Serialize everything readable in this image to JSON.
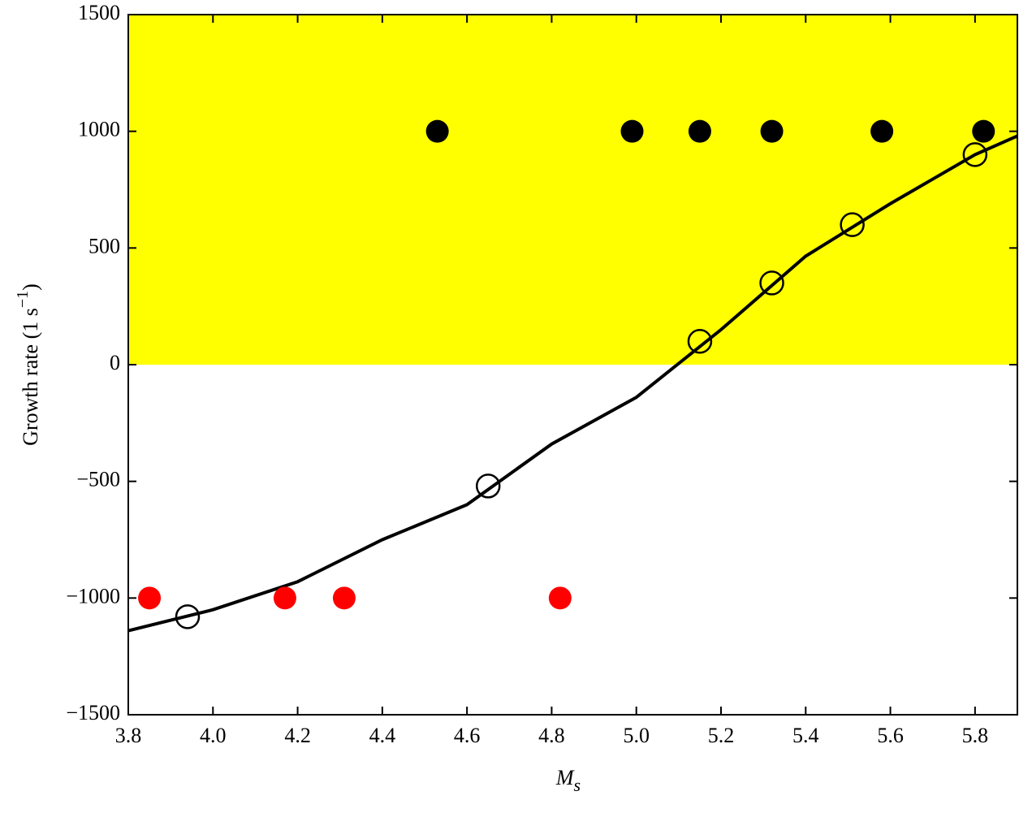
{
  "chart_data": {
    "type": "scatter",
    "xlabel": {
      "main": "M",
      "sub": "s"
    },
    "ylabel": {
      "main": "Growth rate (1 s",
      "sup": "−1",
      "end": ")"
    },
    "xlim": [
      3.8,
      5.9
    ],
    "ylim": [
      -1500,
      1500
    ],
    "xticks": [
      3.8,
      {
        "value": 4.0,
        "label": "4.0"
      },
      4.2,
      4.4,
      4.6,
      4.8,
      {
        "value": 5.0,
        "label": "5.0"
      },
      5.2,
      5.4,
      5.6,
      5.8
    ],
    "yticks": [
      {
        "value": -1500,
        "label": "−1500"
      },
      {
        "value": -1000,
        "label": "−1000"
      },
      {
        "value": -500,
        "label": "−500"
      },
      0,
      500,
      1000,
      1500
    ],
    "shaded_region": {
      "ymin": 0,
      "ymax": 1500,
      "color": "#ffff00"
    },
    "series": [
      {
        "style": "line",
        "color": "#000000",
        "x": [
          3.8,
          4.0,
          4.2,
          4.4,
          4.6,
          4.8,
          5.0,
          5.2,
          5.4,
          5.6,
          5.8,
          5.9
        ],
        "values": [
          -1140,
          -1050,
          -930,
          -750,
          -600,
          -340,
          -140,
          150,
          465,
          690,
          900,
          980
        ]
      },
      {
        "style": "filled",
        "color": "#000000",
        "x": [
          4.53,
          4.99,
          5.15,
          5.32,
          5.58,
          5.82
        ],
        "values": [
          1000,
          1000,
          1000,
          1000,
          1000,
          1000
        ]
      },
      {
        "style": "filled",
        "color": "#ff0000",
        "x": [
          3.85,
          4.17,
          4.31,
          4.82
        ],
        "values": [
          -1000,
          -1000,
          -1000,
          -1000
        ]
      },
      {
        "style": "open",
        "color": "#000000",
        "x": [
          3.94,
          4.65,
          5.15,
          5.32,
          5.51,
          5.8
        ],
        "values": [
          -1080,
          -520,
          100,
          350,
          600,
          900
        ]
      }
    ]
  }
}
